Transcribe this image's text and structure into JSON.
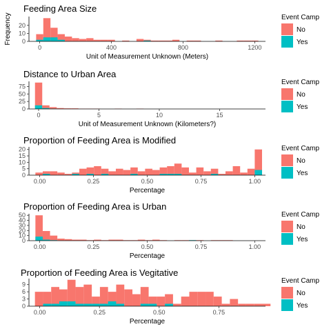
{
  "colors": {
    "No": "#F8766D",
    "Yes": "#00BFC4"
  },
  "chart_data": [
    {
      "type": "bar",
      "title": "Feeding Area Size",
      "xlabel": "Unit of Measurement Unknown (Meters)",
      "ylabel": "Frequency",
      "xlim": [
        -60,
        1260
      ],
      "ylim": [
        0,
        31
      ],
      "xticks": [
        0,
        400,
        800,
        1200
      ],
      "xtick_labels": [
        "0",
        "400",
        "800",
        "1200"
      ],
      "yticks": [
        0,
        10,
        20
      ],
      "ytick_labels": [
        "0",
        "10",
        "20"
      ],
      "bin_start": -20,
      "bin_width": 40,
      "series": [
        {
          "name": "No",
          "values": [
            9,
            29,
            17,
            9,
            6,
            4,
            3,
            4,
            2,
            2,
            2,
            0,
            1,
            0,
            3,
            2,
            1,
            1,
            1,
            2,
            0,
            1,
            1,
            0,
            0,
            1,
            0,
            0,
            1,
            1,
            1,
            0,
            0
          ]
        },
        {
          "name": "Yes",
          "values": [
            2,
            5,
            5,
            2,
            0,
            0,
            0,
            0,
            0,
            0,
            0,
            0,
            0,
            0,
            0,
            1,
            0,
            0,
            0,
            0,
            0,
            0,
            0,
            0,
            0,
            0,
            0,
            0,
            0,
            0,
            0,
            0,
            0
          ]
        }
      ],
      "legend": {
        "title": "Event Camp",
        "entries": [
          "No",
          "Yes"
        ],
        "position": "right"
      }
    },
    {
      "type": "bar",
      "title": "Distance to Urban Area",
      "xlabel": "Unit of Measurement Unknown (Kilometers?)",
      "ylabel": "",
      "xlim": [
        -0.8,
        18.8
      ],
      "ylim": [
        0,
        92
      ],
      "xticks": [
        0,
        5,
        10,
        15
      ],
      "xtick_labels": [
        "0",
        "5",
        "10",
        "15"
      ],
      "yticks": [
        0,
        25,
        50,
        75
      ],
      "ytick_labels": [
        "0",
        "25",
        "50",
        "75"
      ],
      "bin_start": -0.3,
      "bin_width": 0.6,
      "series": [
        {
          "name": "No",
          "values": [
            88,
            12,
            6,
            3,
            2,
            2,
            1,
            1,
            1,
            0,
            0,
            1,
            0,
            0,
            1,
            0,
            0,
            0,
            0,
            0,
            0,
            0,
            0,
            0,
            0,
            0,
            0,
            0,
            0,
            0,
            0
          ]
        },
        {
          "name": "Yes",
          "values": [
            12,
            3,
            1,
            0,
            0,
            0,
            0,
            0,
            0,
            0,
            0,
            0,
            0,
            0,
            0,
            0,
            0,
            0,
            0,
            0,
            0,
            0,
            0,
            0,
            0,
            0,
            0,
            0,
            0,
            0,
            0
          ]
        }
      ],
      "legend": {
        "title": "Event Camp",
        "entries": [
          "No",
          "Yes"
        ],
        "position": "right"
      }
    },
    {
      "type": "bar",
      "title": "Proportion of Feeding Area is Modified",
      "xlabel": "Percentage",
      "ylabel": "",
      "xlim": [
        -0.05,
        1.05
      ],
      "ylim": [
        0,
        22
      ],
      "xticks": [
        0,
        0.25,
        0.5,
        0.75,
        1
      ],
      "xtick_labels": [
        "0.00",
        "0.25",
        "0.50",
        "0.75",
        "1.00"
      ],
      "yticks": [
        0,
        5,
        10,
        15,
        20
      ],
      "ytick_labels": [
        "0",
        "5",
        "10",
        "15",
        "20"
      ],
      "bin_start": -0.02,
      "bin_width": 0.034,
      "series": [
        {
          "name": "No",
          "values": [
            2,
            3,
            3,
            2,
            1,
            2,
            5,
            6,
            7,
            5,
            3,
            5,
            4,
            6,
            3,
            5,
            4,
            6,
            7,
            9,
            6,
            2,
            6,
            3,
            5,
            1,
            3,
            7,
            2,
            5,
            20
          ]
        },
        {
          "name": "Yes",
          "values": [
            0,
            1,
            0,
            0,
            0,
            1,
            0,
            1,
            0,
            1,
            0,
            0,
            0,
            1,
            0,
            0,
            0,
            1,
            1,
            1,
            0,
            0,
            0,
            0,
            1,
            0,
            0,
            0,
            0,
            0,
            4
          ]
        }
      ],
      "legend": {
        "title": "Event Camp",
        "entries": [
          "No",
          "Yes"
        ],
        "position": "right"
      }
    },
    {
      "type": "bar",
      "title": "Proportion of Feeding Area is Urban",
      "xlabel": "Percentage",
      "ylabel": "",
      "xlim": [
        -0.05,
        1.05
      ],
      "ylim": [
        0,
        53
      ],
      "xticks": [
        0,
        0.25,
        0.5,
        0.75,
        1
      ],
      "xtick_labels": [
        "0.00",
        "0.25",
        "0.50",
        "0.75",
        "1.00"
      ],
      "yticks": [
        0,
        10,
        20,
        30,
        40,
        50
      ],
      "ytick_labels": [
        "0",
        "10",
        "20",
        "30",
        "40",
        "50"
      ],
      "bin_start": -0.02,
      "bin_width": 0.034,
      "series": [
        {
          "name": "No",
          "values": [
            50,
            19,
            10,
            4,
            3,
            2,
            2,
            1,
            2,
            1,
            2,
            2,
            1,
            1,
            2,
            1,
            2,
            1,
            0,
            1,
            1,
            1,
            1,
            0,
            1,
            1,
            1,
            0,
            0,
            0,
            0
          ]
        },
        {
          "name": "Yes",
          "values": [
            8,
            2,
            1,
            0,
            0,
            0,
            0,
            0,
            0,
            0,
            0,
            0,
            0,
            0,
            0,
            0,
            0,
            0,
            0,
            0,
            0,
            1,
            0,
            0,
            0,
            0,
            0,
            0,
            0,
            0,
            0
          ]
        }
      ],
      "legend": {
        "title": "Event Camp",
        "entries": [
          "No",
          "Yes"
        ],
        "position": "right"
      }
    },
    {
      "type": "bar",
      "title": "Proportion of Feeding Area is Vegitative",
      "xlabel": "Percentage",
      "ylabel": "",
      "xlim": [
        -0.045,
        0.945
      ],
      "ylim": [
        0,
        11.5
      ],
      "xticks": [
        0,
        0.25,
        0.5,
        0.75
      ],
      "xtick_labels": [
        "0.00",
        "0.25",
        "0.50",
        "0.75"
      ],
      "yticks": [
        0,
        3,
        6,
        9
      ],
      "ytick_labels": [
        "0",
        "3",
        "6",
        "9"
      ],
      "bin_start": -0.02,
      "bin_width": 0.034,
      "series": [
        {
          "name": "No",
          "values": [
            6,
            6,
            8,
            7,
            11,
            8,
            9,
            4,
            8,
            6,
            9,
            7,
            5,
            8,
            4,
            4,
            5,
            1,
            4,
            6,
            6,
            6,
            4,
            1,
            3,
            1,
            1,
            1,
            1
          ]
        },
        {
          "name": "Yes",
          "values": [
            0,
            1,
            1,
            2,
            2,
            1,
            1,
            1,
            1,
            2,
            1,
            0,
            0,
            1,
            1,
            0,
            1,
            0,
            0,
            0,
            0,
            0,
            0,
            0,
            0,
            0,
            0,
            0,
            0
          ]
        }
      ],
      "legend": {
        "title": "Event Camp",
        "entries": [
          "No",
          "Yes"
        ],
        "position": "right"
      }
    }
  ]
}
